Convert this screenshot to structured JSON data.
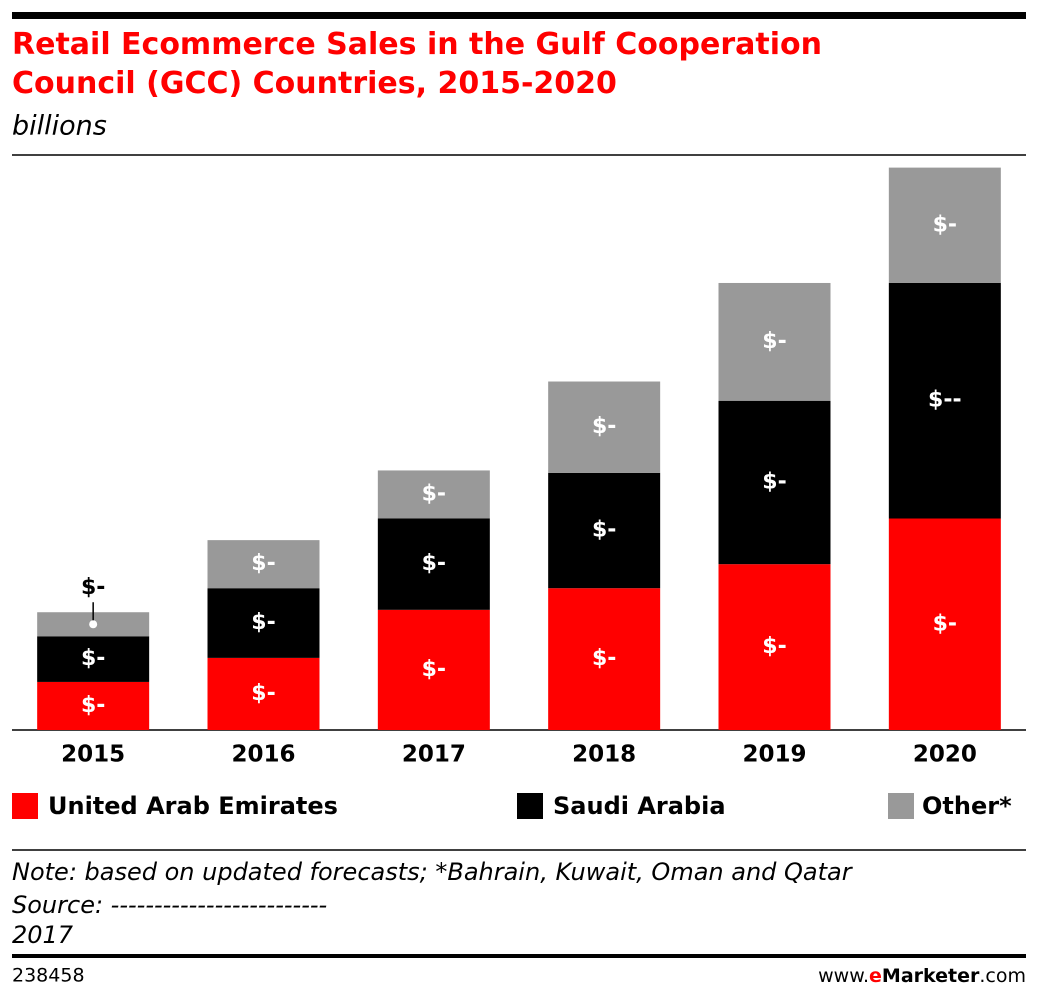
{
  "chart_data": {
    "type": "stacked-bar",
    "title": "Retail Ecommerce Sales in the Gulf Cooperation Council (GCC) Countries, 2015-2020",
    "subtitle": "billions",
    "categories": [
      "2015",
      "2016",
      "2017",
      "2018",
      "2019",
      "2020"
    ],
    "ylim": [
      0,
      23.8
    ],
    "series": [
      {
        "name": "United Arab Emirates",
        "color": "#ff0000",
        "values": [
          2.0,
          3.0,
          5.0,
          5.9,
          6.9,
          8.8
        ],
        "value_labels": [
          "$-",
          "$-",
          "$-",
          "$-",
          "$-",
          "$-"
        ]
      },
      {
        "name": "Saudi Arabia",
        "color": "#000000",
        "values": [
          1.9,
          2.9,
          3.8,
          4.8,
          6.8,
          9.8
        ],
        "value_labels": [
          "$-",
          "$-",
          "$-",
          "$-",
          "$-",
          "$--"
        ]
      },
      {
        "name": "Other*",
        "color": "#999999",
        "values": [
          1.0,
          2.0,
          2.0,
          3.8,
          4.9,
          4.8
        ],
        "value_labels": [
          "$-",
          "$-",
          "$-",
          "$-",
          "$-",
          "$-"
        ]
      }
    ]
  },
  "footer": {
    "note": "Note: based on updated forecasts; *Bahrain, Kuwait, Oman and Qatar",
    "source": "Source: -------------------------",
    "year": "2017",
    "id": "238458",
    "site_prefix": "www.",
    "site_brand_e": "e",
    "site_brand_rest": "Marketer",
    "site_suffix": ".com"
  }
}
